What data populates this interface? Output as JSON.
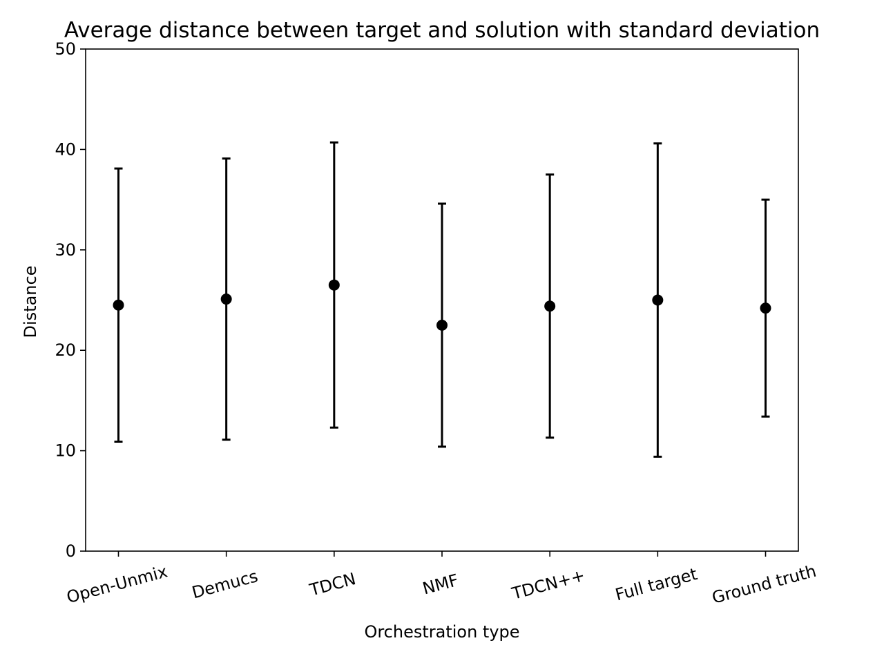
{
  "chart_data": {
    "type": "errorbar",
    "title": "Average distance between target and solution with standard deviation",
    "xlabel": "Orchestration type",
    "ylabel": "Distance",
    "ylim": [
      0,
      50
    ],
    "yticks": [
      0,
      10,
      20,
      30,
      40,
      50
    ],
    "grid": false,
    "legend": "none",
    "marker_color": "#000000",
    "categories": [
      "Open-Unmix",
      "Demucs",
      "TDCN",
      "NMF",
      "TDCN++",
      "Full target",
      "Ground truth"
    ],
    "means": [
      24.5,
      25.1,
      26.5,
      22.5,
      24.4,
      25.0,
      24.2
    ],
    "stds": [
      13.6,
      14.0,
      14.2,
      12.1,
      13.1,
      15.6,
      10.8
    ]
  }
}
